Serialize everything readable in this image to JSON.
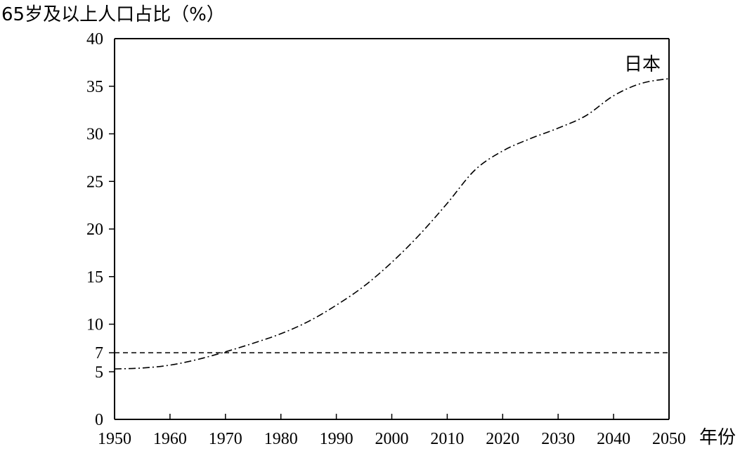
{
  "chart_data": {
    "type": "line",
    "ylabel": "65岁及以上人口占比（%）",
    "xlabel": "年份",
    "xlim": [
      1950,
      2050
    ],
    "ylim": [
      0,
      40
    ],
    "x_ticks": [
      "1950",
      "1960",
      "1970",
      "1980",
      "1990",
      "2000",
      "2010",
      "2020",
      "2030",
      "2040",
      "2050"
    ],
    "y_ticks": [
      "0",
      "5",
      "7",
      "10",
      "15",
      "20",
      "25",
      "30",
      "35",
      "40"
    ],
    "reference_line": {
      "y": 7,
      "style": "dashed"
    },
    "grid": false,
    "series": [
      {
        "name": "日本",
        "style": "dash-dot",
        "x": [
          1950,
          1955,
          1960,
          1965,
          1970,
          1975,
          1980,
          1985,
          1990,
          1995,
          2000,
          2005,
          2010,
          2015,
          2020,
          2025,
          2030,
          2035,
          2040,
          2045,
          2050
        ],
        "y": [
          5.3,
          5.4,
          5.7,
          6.3,
          7.1,
          8.0,
          9.0,
          10.3,
          12.0,
          14.0,
          16.5,
          19.4,
          22.7,
          26.2,
          28.2,
          29.5,
          30.6,
          31.9,
          34.0,
          35.3,
          35.8
        ]
      }
    ]
  }
}
